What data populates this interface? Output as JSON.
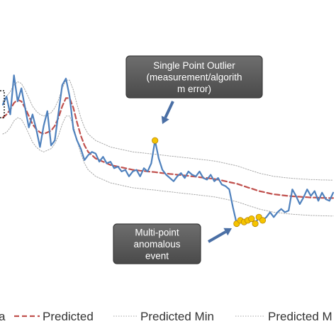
{
  "chart_data": {
    "type": "line",
    "title": "",
    "xlabel": "",
    "ylabel": "",
    "grid": false,
    "legend_position": "bottom",
    "x_count": 90,
    "series": [
      {
        "name": "Data",
        "color": "#4f81bd",
        "style": "solid",
        "values": [
          3.8,
          4.3,
          3.2,
          5.6,
          4.0,
          4.8,
          3.6,
          2.4,
          3.2,
          2.3,
          1.2,
          2.5,
          3.4,
          1.3,
          1.6,
          3.3,
          5.0,
          5.4,
          4.3,
          2.3,
          1.6,
          1.1,
          0.4,
          0.7,
          0.9,
          0.8,
          0.3,
          0.6,
          0.2,
          0.3,
          -0.1,
          0.0,
          -0.3,
          -0.2,
          -0.6,
          -0.3,
          -0.2,
          -0.6,
          -0.1,
          -0.3,
          0.2,
          1.6,
          0.5,
          -0.2,
          -0.5,
          -0.7,
          -0.9,
          -0.6,
          -0.4,
          -0.7,
          -0.3,
          -0.5,
          -0.6,
          -0.3,
          -0.7,
          -0.8,
          -0.5,
          -0.9,
          -0.7,
          -1.1,
          -1.2,
          -1.4,
          -2.5,
          -3.5,
          -3.3,
          -3.4,
          -3.3,
          -3.2,
          -3.5,
          -3.1,
          -3.3,
          -3.1,
          -2.8,
          -3.1,
          -2.8,
          -2.6,
          -2.8,
          -2.7,
          -1.4,
          -1.8,
          -2.3,
          -1.9,
          -1.4,
          -1.8,
          -1.5,
          -2.1,
          -1.6,
          -2.0,
          -2.1,
          -1.6
        ]
      },
      {
        "name": "Predicted",
        "color": "#c0504d",
        "style": "dashed",
        "values": [
          3.0,
          3.2,
          3.5,
          3.9,
          4.1,
          4.0,
          3.6,
          3.1,
          2.6,
          2.3,
          2.1,
          2.0,
          2.1,
          2.2,
          2.5,
          3.0,
          3.7,
          4.2,
          4.2,
          3.6,
          2.7,
          1.9,
          1.3,
          0.9,
          0.7,
          0.5,
          0.4,
          0.3,
          0.2,
          0.1,
          0.05,
          0.0,
          -0.05,
          -0.1,
          -0.15,
          -0.2,
          -0.22,
          -0.25,
          -0.27,
          -0.3,
          -0.32,
          -0.34,
          -0.37,
          -0.4,
          -0.42,
          -0.45,
          -0.47,
          -0.5,
          -0.52,
          -0.55,
          -0.57,
          -0.6,
          -0.62,
          -0.65,
          -0.68,
          -0.7,
          -0.73,
          -0.76,
          -0.8,
          -0.85,
          -0.9,
          -0.95,
          -1.0,
          -1.05,
          -1.12,
          -1.2,
          -1.28,
          -1.35,
          -1.42,
          -1.5,
          -1.55,
          -1.6,
          -1.65,
          -1.7,
          -1.72,
          -1.75,
          -1.78,
          -1.8,
          -1.82,
          -1.84,
          -1.85,
          -1.87,
          -1.88,
          -1.9,
          -1.9,
          -1.91,
          -1.92,
          -1.92,
          -1.93,
          -1.93
        ]
      },
      {
        "name": "Predicted Min",
        "color": "#a6a6a6",
        "style": "dotted",
        "values": [
          2.0,
          2.1,
          2.4,
          2.8,
          3.0,
          2.9,
          2.5,
          2.0,
          1.5,
          1.2,
          1.0,
          0.9,
          1.0,
          1.1,
          1.4,
          1.9,
          2.6,
          3.1,
          3.1,
          2.5,
          1.6,
          0.8,
          0.2,
          -0.2,
          -0.4,
          -0.6,
          -0.7,
          -0.8,
          -0.9,
          -1.0,
          -1.05,
          -1.1,
          -1.15,
          -1.2,
          -1.25,
          -1.3,
          -1.32,
          -1.35,
          -1.37,
          -1.4,
          -1.42,
          -1.44,
          -1.47,
          -1.5,
          -1.52,
          -1.55,
          -1.57,
          -1.6,
          -1.62,
          -1.65,
          -1.67,
          -1.7,
          -1.72,
          -1.75,
          -1.78,
          -1.8,
          -1.83,
          -1.86,
          -1.9,
          -1.95,
          -2.0,
          -2.05,
          -2.1,
          -2.15,
          -2.22,
          -2.3,
          -2.38,
          -2.45,
          -2.52,
          -2.6,
          -2.65,
          -2.7,
          -2.75,
          -2.8,
          -2.82,
          -2.85,
          -2.88,
          -2.9,
          -2.92,
          -2.94,
          -2.95,
          -2.97,
          -2.98,
          -3.0,
          -3.0,
          -3.01,
          -3.02,
          -3.02,
          -3.03,
          -3.03
        ]
      },
      {
        "name": "Predicted Max",
        "color": "#a6a6a6",
        "style": "dotted",
        "values": [
          4.0,
          4.3,
          4.6,
          5.0,
          5.2,
          5.1,
          4.7,
          4.2,
          3.7,
          3.4,
          3.2,
          3.1,
          3.2,
          3.3,
          3.6,
          4.1,
          4.8,
          5.3,
          5.3,
          4.7,
          3.8,
          3.0,
          2.4,
          2.0,
          1.8,
          1.6,
          1.5,
          1.4,
          1.3,
          1.2,
          1.15,
          1.1,
          1.05,
          1.0,
          0.95,
          0.9,
          0.88,
          0.85,
          0.83,
          0.8,
          0.78,
          0.76,
          0.73,
          0.7,
          0.68,
          0.65,
          0.63,
          0.6,
          0.58,
          0.55,
          0.53,
          0.5,
          0.48,
          0.45,
          0.42,
          0.4,
          0.37,
          0.34,
          0.3,
          0.25,
          0.2,
          0.15,
          0.1,
          0.05,
          -0.02,
          -0.1,
          -0.18,
          -0.25,
          -0.32,
          -0.4,
          -0.45,
          -0.5,
          -0.55,
          -0.6,
          -0.62,
          -0.65,
          -0.68,
          -0.7,
          -0.72,
          -0.74,
          -0.75,
          -0.77,
          -0.78,
          -0.8,
          -0.8,
          -0.81,
          -0.82,
          -0.82,
          -0.83,
          -0.83
        ]
      }
    ],
    "anomalies": [
      {
        "label": "Single point outlier",
        "indices": [
          41
        ],
        "color": "#f5c400"
      },
      {
        "label": "Multi-point anomalous event",
        "indices": [
          63,
          64,
          65,
          66,
          67,
          68,
          69,
          70
        ],
        "color": "#f5c400"
      }
    ],
    "annotations": [
      {
        "lines": [
          "Single Point Outlier",
          "(measurement/algorith",
          "m error)"
        ],
        "points_to": 41
      },
      {
        "lines": [
          "Multi-point",
          "anomalous",
          "event"
        ],
        "points_to": 63
      }
    ],
    "legend": [
      {
        "label": "a",
        "series": "Data"
      },
      {
        "label": "Predicted",
        "series": "Predicted"
      },
      {
        "label": "Predicted Min",
        "series": "Predicted Min"
      },
      {
        "label": "Predicted M",
        "series": "Predicted Max"
      }
    ]
  }
}
